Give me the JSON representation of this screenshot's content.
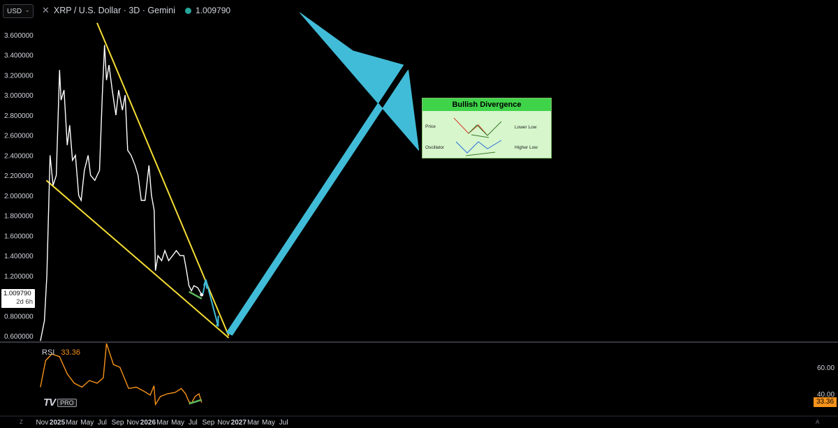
{
  "header": {
    "currency": "USD",
    "title": "XRP / U.S. Dollar · 3D · Gemini",
    "last_price": "1.009790"
  },
  "price_tag": {
    "value": "1.009790",
    "countdown": "2d 6h"
  },
  "rsi": {
    "label": "RSI",
    "value": "33.36",
    "axis_ticks": [
      "60.00",
      "40.00"
    ]
  },
  "branding": {
    "logo": "TV",
    "badge": "PRO"
  },
  "bottom_left_icon": "Z",
  "bottom_right_icon": "A",
  "legend": {
    "title": "Bullish Divergence",
    "rows": [
      {
        "name": "Price",
        "desc": "Lower Low"
      },
      {
        "name": "Oscillator",
        "desc": "Higher Low"
      }
    ]
  },
  "colors": {
    "background": "#000000",
    "price_line": "#ffffff",
    "trendline": "#f5dd33",
    "rsi_line": "#f7931a",
    "arrow": "#41bcd8",
    "divergence": "#5cb85c"
  },
  "chart_data": [
    {
      "type": "line",
      "series": [
        {
          "x": [
            "2024-10-25",
            "2024-11-10",
            "2024-11-20",
            "2024-12-03",
            "2024-12-15",
            "2024-12-28",
            "2025-01-10",
            "2025-01-16",
            "2025-01-28",
            "2025-02-10",
            "2025-02-20",
            "2025-03-03",
            "2025-03-15",
            "2025-03-28",
            "2025-04-07",
            "2025-04-20",
            "2025-05-05",
            "2025-05-15",
            "2025-06-01",
            "2025-06-20",
            "2025-07-01",
            "2025-07-10",
            "2025-07-18",
            "2025-07-28",
            "2025-08-10",
            "2025-08-25",
            "2025-09-05",
            "2025-09-20",
            "2025-10-01",
            "2025-10-11",
            "2025-10-25",
            "2025-11-10",
            "2025-11-22",
            "2025-12-05",
            "2025-12-20",
            "2026-01-05",
            "2026-01-15",
            "2026-01-26",
            "2026-01-31",
            "2026-02-10",
            "2026-02-25",
            "2026-03-10",
            "2026-03-25",
            "2026-04-10",
            "2026-04-25",
            "2026-05-10",
            "2026-05-25",
            "2026-06-05",
            "2026-06-15",
            "2026-06-25",
            "2026-07-05",
            "2026-07-20",
            "2026-08-05"
          ],
          "values": [
            0.55,
            0.75,
            1.2,
            2.4,
            2.1,
            2.2,
            3.25,
            2.95,
            3.05,
            2.5,
            2.7,
            2.35,
            2.4,
            2.0,
            1.95,
            2.25,
            2.4,
            2.2,
            2.15,
            2.25,
            3.0,
            3.5,
            3.15,
            3.3,
            3.05,
            2.8,
            3.05,
            2.85,
            3.0,
            2.45,
            2.4,
            2.3,
            2.2,
            1.95,
            1.95,
            2.3,
            2.0,
            1.85,
            1.25,
            1.4,
            1.35,
            1.45,
            1.35,
            1.4,
            1.45,
            1.4,
            1.4,
            1.25,
            1.1,
            1.05,
            1.1,
            1.08,
            1.01
          ]
        }
      ],
      "yticks": [
        "3.600000",
        "3.400000",
        "3.200000",
        "3.000000",
        "2.800000",
        "2.600000",
        "2.400000",
        "2.200000",
        "2.000000",
        "1.800000",
        "1.600000",
        "1.400000",
        "1.200000",
        "1.000000",
        "0.800000",
        "0.600000"
      ],
      "ylim": [
        0.55,
        3.75
      ],
      "xticks": [
        "Nov",
        "2025",
        "Mar",
        "May",
        "Jul",
        "Sep",
        "Nov",
        "2026",
        "Mar",
        "May",
        "Jul",
        "Sep",
        "Nov",
        "2027",
        "Mar",
        "May",
        "Jul"
      ],
      "grid": false
    },
    {
      "type": "line",
      "series": [
        {
          "name": "RSI",
          "x": [
            "2024-10-25",
            "2024-11-15",
            "2024-12-10",
            "2025-01-10",
            "2025-02-10",
            "2025-03-10",
            "2025-04-10",
            "2025-05-10",
            "2025-06-10",
            "2025-07-05",
            "2025-07-18",
            "2025-08-15",
            "2025-09-10",
            "2025-10-15",
            "2025-11-15",
            "2025-12-15",
            "2026-01-10",
            "2026-01-25",
            "2026-01-31",
            "2026-02-20",
            "2026-03-20",
            "2026-04-20",
            "2026-05-15",
            "2026-06-01",
            "2026-06-15",
            "2026-06-25",
            "2026-07-10",
            "2026-07-25",
            "2026-08-05"
          ],
          "values": [
            45,
            65,
            70,
            68,
            55,
            48,
            45,
            50,
            48,
            52,
            78,
            62,
            60,
            44,
            45,
            42,
            39,
            46,
            32,
            38,
            40,
            41,
            44,
            40,
            34,
            33,
            38,
            40,
            33.36
          ]
        }
      ],
      "yticks": [
        "60.00",
        "40.00"
      ]
    }
  ]
}
